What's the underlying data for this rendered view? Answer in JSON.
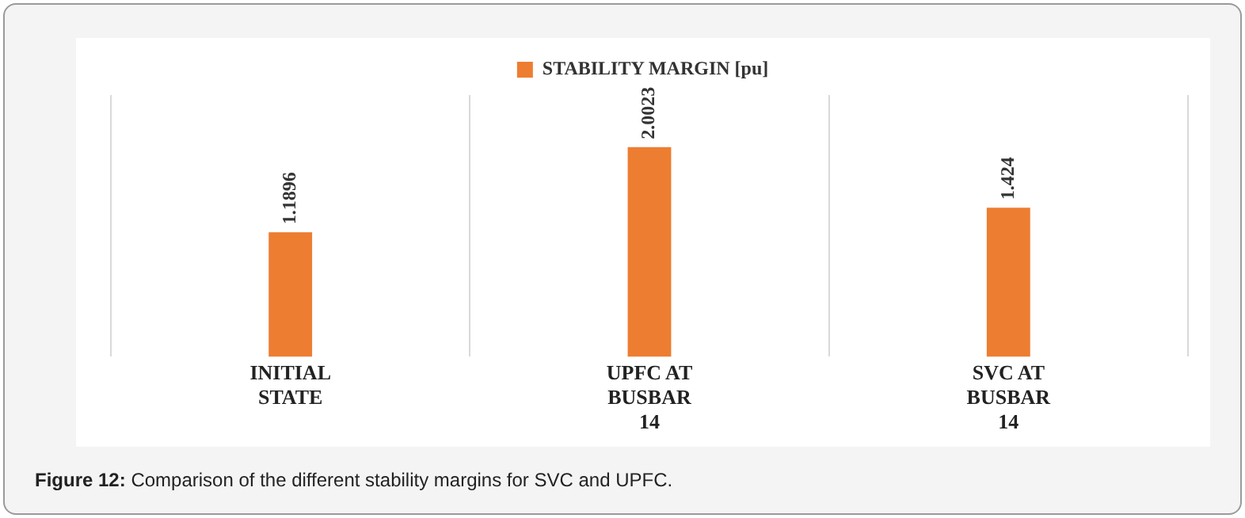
{
  "chart_data": {
    "type": "bar",
    "categories": [
      "INITIAL STATE",
      "UPFC AT BUSBAR 14",
      "SVC  AT BUSBAR 14"
    ],
    "series": [
      {
        "name": "STABILITY MARGIN [pu]",
        "color": "#ed7d31",
        "values": [
          1.1896,
          2.0023,
          1.424
        ]
      }
    ],
    "data_labels": true,
    "grid": "x",
    "legend": "top",
    "annotations": [
      "Figure 12: Comparison of the different stability margins for SVC and UPFC."
    ]
  }
}
